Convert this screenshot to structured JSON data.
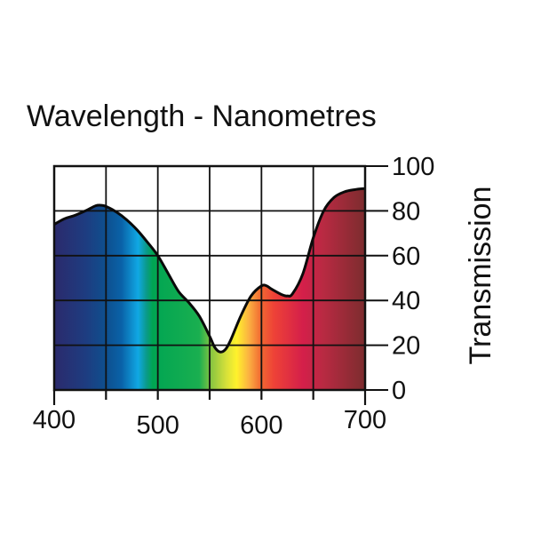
{
  "chart_data": {
    "type": "area",
    "title": "Wavelength - Nanometres",
    "xlabel": "Wavelength - Nanometres",
    "ylabel": "Transmission",
    "xlim": [
      400,
      700
    ],
    "ylim": [
      0,
      100
    ],
    "grid": true,
    "x_ticks": [
      400,
      450,
      500,
      550,
      600,
      650,
      700
    ],
    "x_tick_labels": [
      "400",
      "500",
      "600",
      "700"
    ],
    "x_tick_label_values": [
      400,
      500,
      600,
      700
    ],
    "y_ticks": [
      0,
      20,
      40,
      60,
      80,
      100
    ],
    "y_tick_labels": [
      "0",
      "20",
      "40",
      "60",
      "80",
      "100"
    ],
    "y_axis_side": "right",
    "series": [
      {
        "name": "Transmission",
        "x": [
          400,
          410,
          420,
          430,
          440,
          445,
          450,
          460,
          470,
          480,
          490,
          500,
          510,
          520,
          530,
          540,
          550,
          555,
          560,
          565,
          570,
          580,
          590,
          600,
          605,
          610,
          620,
          625,
          630,
          640,
          650,
          660,
          670,
          680,
          690,
          700
        ],
        "values": [
          74,
          76.5,
          78,
          80,
          82.3,
          82.5,
          82,
          79.5,
          76,
          71.5,
          66,
          60,
          52,
          44,
          39,
          33,
          24,
          19,
          17,
          18,
          22,
          33,
          42,
          46.5,
          46.5,
          45,
          42.5,
          42,
          43,
          52,
          68,
          80,
          86,
          88.5,
          89.5,
          90
        ]
      }
    ],
    "spectrum_fill": [
      {
        "nm": 400,
        "color": "#2b2a6c"
      },
      {
        "nm": 430,
        "color": "#1e3c80"
      },
      {
        "nm": 450,
        "color": "#0e4f8e"
      },
      {
        "nm": 465,
        "color": "#0a62a8"
      },
      {
        "nm": 481,
        "color": "#10a8e4"
      },
      {
        "nm": 489,
        "color": "#0a9a8a"
      },
      {
        "nm": 495,
        "color": "#00a552"
      },
      {
        "nm": 540,
        "color": "#1aaf50"
      },
      {
        "nm": 552,
        "color": "#8cc640"
      },
      {
        "nm": 566,
        "color": "#d6e03a"
      },
      {
        "nm": 576,
        "color": "#fff22c"
      },
      {
        "nm": 588,
        "color": "#fbb042"
      },
      {
        "nm": 599,
        "color": "#f26b32"
      },
      {
        "nm": 612,
        "color": "#ee4237"
      },
      {
        "nm": 640,
        "color": "#d41f4a"
      },
      {
        "nm": 660,
        "color": "#b82a42"
      },
      {
        "nm": 700,
        "color": "#7c2c2e"
      }
    ]
  }
}
